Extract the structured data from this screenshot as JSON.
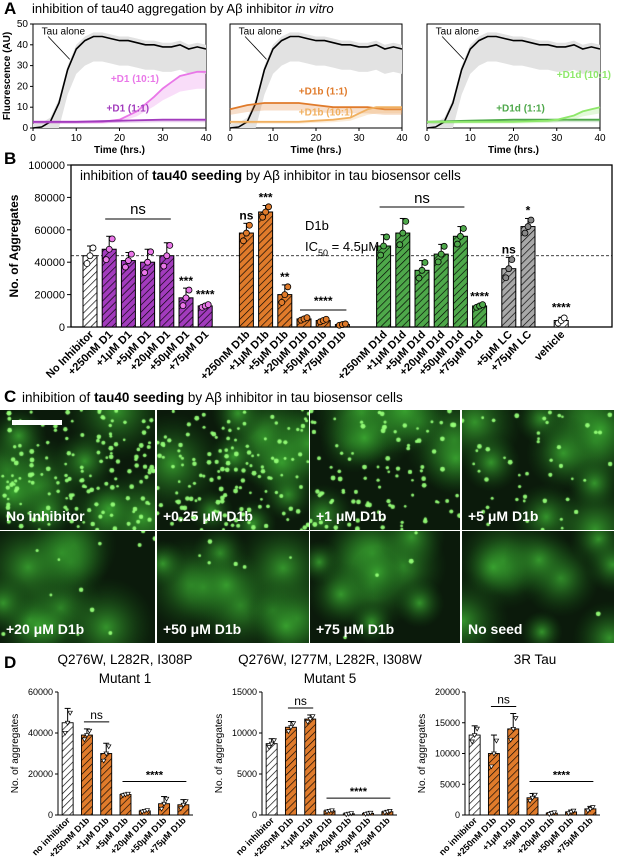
{
  "panel_labels": {
    "a": "A",
    "b": "B",
    "c": "C",
    "d": "D"
  },
  "panel_a": {
    "title_main": "inhibition of tau40 aggregation by Aβ inhibitor ",
    "title_italic": "in vitro",
    "ylabel": "Fluorescence (AU)",
    "xlabel": "Time (hrs.)"
  },
  "panel_b": {
    "title_pre": "inhibition of ",
    "title_bold": "tau40 seeding",
    "title_post": " by Aβ inhibitor in tau biosensor cells",
    "annotation_name": "D1b",
    "annotation_ic": "IC",
    "annotation_sub": "50",
    "annotation_val": " = 4.5μM"
  },
  "panel_c": {
    "title_pre": "inhibition of ",
    "title_bold": "tau40 seeding",
    "title_post": " by Aβ inhibitor in tau biosensor cells",
    "images": [
      "No inhibitor",
      "+0.25 μM D1b",
      "+1 μM D1b",
      "+5 μM D1b",
      "+20 μM D1b",
      "+50 μM D1b",
      "+75 μM D1b",
      "No seed"
    ]
  },
  "colors": {
    "d1": "#a23bbd",
    "d1_light": "#e977e8",
    "d1b": "#e07b2b",
    "d1b_light": "#f0b060",
    "d1d": "#4ea84a",
    "d1d_light": "#8ee86a",
    "lc": "#a8a8a8",
    "black": "#000000"
  },
  "chart_data": [
    {
      "id": "A1",
      "type": "line",
      "xlabel": "Time (hrs.)",
      "ylabel": "Fluorescence (AU)",
      "xlim": [
        0,
        40
      ],
      "ylim": [
        0,
        50
      ],
      "xticks": [
        0,
        10,
        20,
        30,
        40
      ],
      "yticks": [
        0,
        10,
        20,
        30,
        40,
        50
      ],
      "series": [
        {
          "name": "Tau alone",
          "x": [
            0,
            2,
            4,
            6,
            8,
            10,
            12,
            14,
            16,
            18,
            20,
            22,
            24,
            26,
            28,
            30,
            32,
            34,
            36,
            38,
            40
          ],
          "y": [
            0,
            0.5,
            3,
            12,
            28,
            38,
            42,
            44,
            44,
            43,
            42,
            42,
            41,
            40,
            40,
            39,
            39,
            40,
            38,
            39,
            38
          ]
        },
        {
          "name": "+D1 (10:1)",
          "x": [
            0,
            4,
            8,
            12,
            16,
            20,
            24,
            28,
            30,
            32,
            34,
            36,
            38,
            40
          ],
          "y": [
            3,
            3,
            3,
            3,
            3,
            4,
            8,
            15,
            19,
            22,
            25,
            26,
            27,
            27
          ]
        },
        {
          "name": "+D1 (1:1)",
          "x": [
            0,
            10,
            20,
            30,
            40
          ],
          "y": [
            3,
            3,
            3.5,
            4,
            4
          ]
        }
      ]
    },
    {
      "id": "A2",
      "type": "line",
      "xlabel": "Time (hrs.)",
      "ylabel": "",
      "xlim": [
        0,
        40
      ],
      "ylim": [
        0,
        50
      ],
      "xticks": [
        0,
        10,
        20,
        30,
        40
      ],
      "yticks": [],
      "series": [
        {
          "name": "Tau alone",
          "x": [
            0,
            2,
            4,
            6,
            8,
            10,
            12,
            14,
            16,
            18,
            20,
            22,
            24,
            26,
            28,
            30,
            32,
            34,
            36,
            38,
            40
          ],
          "y": [
            0,
            0.5,
            3,
            12,
            28,
            38,
            42,
            44,
            44,
            43,
            42,
            42,
            41,
            40,
            40,
            39,
            39,
            40,
            38,
            39,
            38
          ]
        },
        {
          "name": "+D1b (1:1)",
          "x": [
            0,
            4,
            8,
            12,
            16,
            20,
            24,
            28,
            32,
            36,
            40
          ],
          "y": [
            9,
            11,
            12,
            12,
            12,
            11,
            10,
            10,
            10,
            9,
            9
          ]
        },
        {
          "name": "+D1b (10:1)",
          "x": [
            0,
            8,
            16,
            20,
            24,
            28,
            30,
            32,
            34,
            36,
            40
          ],
          "y": [
            3,
            3,
            3,
            3.5,
            4,
            5,
            7,
            9,
            10,
            10,
            10
          ]
        }
      ]
    },
    {
      "id": "A3",
      "type": "line",
      "xlabel": "Time (hrs.)",
      "ylabel": "",
      "xlim": [
        0,
        40
      ],
      "ylim": [
        0,
        50
      ],
      "xticks": [
        0,
        10,
        20,
        30,
        40
      ],
      "yticks": [],
      "series": [
        {
          "name": "Tau alone",
          "x": [
            0,
            2,
            4,
            6,
            8,
            10,
            12,
            14,
            16,
            18,
            20,
            22,
            24,
            26,
            28,
            30,
            32,
            34,
            36,
            38,
            40
          ],
          "y": [
            0,
            0.5,
            3,
            12,
            28,
            38,
            42,
            44,
            44,
            43,
            42,
            42,
            41,
            40,
            40,
            39,
            39,
            40,
            38,
            39,
            38
          ]
        },
        {
          "name": "+D1d (1:1)",
          "x": [
            0,
            10,
            20,
            30,
            40
          ],
          "y": [
            3,
            3.5,
            4,
            4,
            4
          ]
        },
        {
          "name": "+D1d (10:1)",
          "x": [
            0,
            10,
            20,
            28,
            30,
            32,
            34,
            36,
            38,
            40
          ],
          "y": [
            3,
            3,
            3,
            3.5,
            4,
            5,
            6,
            8,
            9,
            10
          ]
        }
      ]
    },
    {
      "id": "B",
      "type": "bar",
      "ylabel": "No. of Aggregates",
      "ylim": [
        0,
        100000
      ],
      "yticks": [
        0,
        20000,
        40000,
        60000,
        80000,
        100000
      ],
      "ytick_labels": [
        "0",
        "20000",
        "40000",
        "60000",
        "80000",
        "100000"
      ],
      "reference_line": 44000,
      "categories": [
        "No Inhibitor",
        "+250nM D1",
        "+1μM D1",
        "+5μM D1",
        "+20μM D1",
        "+50μM D1",
        "+75μM D1",
        "+250nM D1b",
        "+1μM D1b",
        "+5μM D1b",
        "+20μM D1b",
        "+50μM D1b",
        "+75μM D1b",
        "+250nM D1d",
        "+1μM D1d",
        "+5μM D1d",
        "+20μM D1d",
        "+50μM D1d",
        "+75μM D1d",
        "+5μM LC",
        "+75μM LC",
        "vehicle"
      ],
      "values": [
        44000,
        48000,
        41000,
        40000,
        44000,
        18000,
        13000,
        58000,
        71000,
        20000,
        5000,
        4000,
        1500,
        50000,
        58000,
        35000,
        45000,
        56000,
        13000,
        36000,
        62000,
        4000
      ],
      "errors": [
        6000,
        8000,
        5000,
        8000,
        8000,
        6000,
        1000,
        6000,
        4000,
        6000,
        1000,
        1000,
        500,
        7000,
        9000,
        6000,
        6000,
        6000,
        1000,
        7000,
        5000,
        2000
      ],
      "groups": [
        "none",
        "d1",
        "d1",
        "d1",
        "d1",
        "d1",
        "d1",
        "d1b",
        "d1b",
        "d1b",
        "d1b",
        "d1b",
        "d1b",
        "d1d",
        "d1d",
        "d1d",
        "d1d",
        "d1d",
        "d1d",
        "lc",
        "lc",
        "vehicle"
      ],
      "annotations": {
        "ns_d1": "ns",
        "stars_50d1": "***",
        "stars_75d1": "****",
        "ns_250d1b": "ns",
        "stars_1d1b": "***",
        "stars_5d1b": "**",
        "stars_d1b_high": "****",
        "ns_d1d": "ns",
        "stars_75d1d": "****",
        "ns_lc": "ns",
        "star_lc": "*",
        "stars_vehicle": "****"
      }
    },
    {
      "id": "D1",
      "type": "bar",
      "title_line1": "Q276W, L282R, I308P",
      "title_line2": "Mutant 1",
      "ylabel": "No. of aggregates",
      "ylim": [
        0,
        60000
      ],
      "yticks": [
        0,
        20000,
        40000,
        60000
      ],
      "ytick_labels": [
        "0",
        "20000",
        "40000",
        "60000"
      ],
      "categories": [
        "no inhibitor",
        "+250nM D1b",
        "+1μM D1b",
        "+5μM D1b",
        "+20μM D1b",
        "+50μM D1b",
        "+75μM D1b"
      ],
      "values": [
        45000,
        39000,
        30000,
        10000,
        2000,
        5500,
        5000
      ],
      "errors": [
        7000,
        3000,
        5000,
        500,
        500,
        3500,
        2500
      ],
      "annotations": {
        "ns": "ns",
        "stars": "****"
      }
    },
    {
      "id": "D2",
      "type": "bar",
      "title_line1": "Q276W, I277M, L282R, I308W",
      "title_line2": "Mutant 5",
      "ylabel": "No. of aggregates",
      "ylim": [
        0,
        15000
      ],
      "yticks": [
        0,
        5000,
        10000,
        15000
      ],
      "ytick_labels": [
        "0",
        "5000",
        "10000",
        "15000"
      ],
      "categories": [
        "no inhibitor",
        "+250nM D1b",
        "+1μM D1b",
        "+5μM D1b",
        "+20μM D1b",
        "+50μM D1b",
        "+75μM D1b"
      ],
      "values": [
        8700,
        10700,
        11700,
        500,
        150,
        200,
        400
      ],
      "errors": [
        600,
        700,
        500,
        100,
        100,
        100,
        150
      ],
      "annotations": {
        "ns": "ns",
        "stars": "****"
      }
    },
    {
      "id": "D3",
      "type": "bar",
      "title_line1": "3R Tau",
      "title_line2": "",
      "ylabel": "No. of aggregates",
      "ylim": [
        0,
        20000
      ],
      "yticks": [
        0,
        5000,
        10000,
        15000,
        20000
      ],
      "ytick_labels": [
        "0",
        "5000",
        "10000",
        "15000",
        "20000"
      ],
      "categories": [
        "no inhibitor",
        "+250nM D1b",
        "+1μM D1b",
        "+5μM D1b",
        "+20μM D1b",
        "+50μM D1b",
        "+75μM D1b"
      ],
      "values": [
        13000,
        10000,
        14000,
        2800,
        300,
        500,
        1000
      ],
      "errors": [
        1500,
        3000,
        2500,
        700,
        200,
        300,
        400
      ],
      "annotations": {
        "ns": "ns",
        "stars": "****"
      }
    }
  ]
}
